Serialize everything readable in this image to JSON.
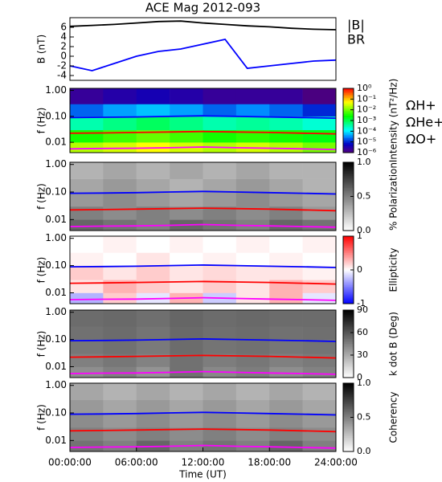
{
  "chart_data": [
    {
      "type": "line",
      "title": "ACE Mag 2012-093",
      "ylabel": "B (nT)",
      "x": [
        0,
        2,
        4,
        6,
        8,
        10,
        12,
        14,
        16,
        18,
        20,
        22,
        24
      ],
      "xlim": [
        0,
        24
      ],
      "ylim": [
        -5,
        8
      ],
      "yticks": [
        -4,
        -2,
        0,
        2,
        4,
        6
      ],
      "series": [
        {
          "name": "|B|",
          "color": "#000000",
          "values": [
            6.2,
            6.4,
            6.6,
            6.9,
            7.2,
            7.3,
            6.9,
            6.6,
            6.3,
            6.1,
            5.8,
            5.6,
            5.5
          ]
        },
        {
          "name": "BR",
          "color": "#0000ff",
          "values": [
            -2,
            -3,
            -1.5,
            0,
            1,
            1.5,
            2.5,
            3.5,
            -2.5,
            -2,
            -1.5,
            -1,
            -0.8
          ]
        }
      ]
    },
    {
      "type": "heatmap",
      "ylabel": "f (Hz)",
      "ylog": true,
      "xlim": [
        0,
        24
      ],
      "ylim": [
        0.004,
        1.2
      ],
      "yticks": [
        0.01,
        {
          "value": 0.1,
          "label": "0.10"
        },
        {
          "value": 1,
          "label": "1.00"
        }
      ],
      "x_bins": [
        0,
        3,
        6,
        9,
        12,
        15,
        18,
        21,
        24
      ],
      "f_bins": [
        0.004,
        0.01,
        0.03,
        0.1,
        0.3,
        1.2
      ],
      "values": [
        [
          0.02,
          0.03,
          0.05,
          0.03,
          0.02,
          0.03,
          0.02,
          0.01
        ],
        [
          0.003,
          0.005,
          0.008,
          0.005,
          0.003,
          0.004,
          0.003,
          0.002
        ],
        [
          0.0003,
          0.0005,
          0.0008,
          0.0005,
          0.0003,
          0.0004,
          0.0003,
          0.0002
        ],
        [
          2e-05,
          4e-05,
          6e-05,
          4e-05,
          2e-05,
          3e-05,
          2e-05,
          1e-05
        ],
        [
          2e-06,
          3e-06,
          4e-06,
          3e-06,
          2e-06,
          2e-06,
          2e-06,
          1e-06
        ]
      ],
      "colorbar": {
        "label": "Intensity (nT²/Hz)",
        "log": true,
        "colormap": "rainbow",
        "lim": [
          1e-06,
          1
        ],
        "ticks": [
          {
            "value": 1,
            "label": "10⁰"
          },
          {
            "value": 0.1,
            "label": "10⁻¹"
          },
          {
            "value": 0.01,
            "label": "10⁻²"
          },
          {
            "value": 0.001,
            "label": "10⁻³"
          },
          {
            "value": 0.0001,
            "label": "10⁻⁴"
          },
          {
            "value": 1e-05,
            "label": "10⁻⁵"
          },
          {
            "value": 1e-06,
            "label": "10⁻⁶"
          }
        ]
      },
      "x": [
        0,
        3,
        6,
        9,
        12,
        15,
        18,
        21,
        24
      ],
      "series": [
        {
          "name": "ΩH+",
          "color": "#0000ff",
          "values": [
            0.09,
            0.092,
            0.095,
            0.1,
            0.105,
            0.1,
            0.095,
            0.09,
            0.085
          ]
        },
        {
          "name": "ΩHe+",
          "color": "#ff0000",
          "values": [
            0.0225,
            0.023,
            0.024,
            0.025,
            0.026,
            0.025,
            0.024,
            0.0225,
            0.021
          ]
        },
        {
          "name": "ΩO+",
          "color": "#ff00ff",
          "values": [
            0.0056,
            0.0058,
            0.0059,
            0.0062,
            0.0066,
            0.0062,
            0.0059,
            0.0056,
            0.0053
          ]
        }
      ]
    },
    {
      "type": "heatmap",
      "ylabel": "f (Hz)",
      "ylog": true,
      "xlim": [
        0,
        24
      ],
      "ylim": [
        0.004,
        1.2
      ],
      "yticks": [
        0.01,
        {
          "value": 0.1,
          "label": "0.10"
        },
        {
          "value": 1,
          "label": "1.00"
        }
      ],
      "x_bins": [
        0,
        3,
        6,
        9,
        12,
        15,
        18,
        21,
        24
      ],
      "f_bins": [
        0.004,
        0.01,
        0.03,
        0.1,
        0.3,
        1.2
      ],
      "values": [
        [
          0.6,
          0.55,
          0.5,
          0.6,
          0.55,
          0.5,
          0.6,
          0.55
        ],
        [
          0.5,
          0.45,
          0.5,
          0.45,
          0.5,
          0.45,
          0.5,
          0.4
        ],
        [
          0.4,
          0.45,
          0.4,
          0.35,
          0.4,
          0.45,
          0.4,
          0.35
        ],
        [
          0.35,
          0.4,
          0.35,
          0.3,
          0.35,
          0.4,
          0.35,
          0.3
        ],
        [
          0.3,
          0.35,
          0.3,
          0.35,
          0.3,
          0.35,
          0.3,
          0.3
        ]
      ],
      "colorbar": {
        "label": "% Polarization",
        "colormap": "gray",
        "lim": [
          0,
          1
        ],
        "ticks": [
          {
            "value": 0,
            "label": "0.0"
          },
          0.5,
          {
            "value": 1,
            "label": "1.0"
          }
        ]
      },
      "x": [
        0,
        3,
        6,
        9,
        12,
        15,
        18,
        21,
        24
      ],
      "series": [
        {
          "color": "#0000ff",
          "values": [
            0.09,
            0.092,
            0.095,
            0.1,
            0.105,
            0.1,
            0.095,
            0.09,
            0.085
          ]
        },
        {
          "color": "#ff0000",
          "values": [
            0.0225,
            0.023,
            0.024,
            0.025,
            0.026,
            0.025,
            0.024,
            0.0225,
            0.021
          ]
        },
        {
          "color": "#ff00ff",
          "values": [
            0.0056,
            0.0058,
            0.0059,
            0.0062,
            0.0066,
            0.0062,
            0.0059,
            0.0056,
            0.0053
          ]
        }
      ]
    },
    {
      "type": "heatmap",
      "ylabel": "f (Hz)",
      "ylog": true,
      "xlim": [
        0,
        24
      ],
      "ylim": [
        0.004,
        1.2
      ],
      "yticks": [
        0.01,
        {
          "value": 0.1,
          "label": "0.10"
        },
        {
          "value": 1,
          "label": "1.00"
        }
      ],
      "x_bins": [
        0,
        3,
        6,
        9,
        12,
        15,
        18,
        21,
        24
      ],
      "f_bins": [
        0.004,
        0.01,
        0.03,
        0.1,
        0.3,
        1.2
      ],
      "values": [
        [
          -0.3,
          0.2,
          -0.1,
          0.3,
          -0.2,
          0.1,
          0.3,
          -0.1
        ],
        [
          0.1,
          0.3,
          0.2,
          0.1,
          0.2,
          0.1,
          0.3,
          0.2
        ],
        [
          0.2,
          0.1,
          0.2,
          0.1,
          0.15,
          0.1,
          0.1,
          0.05
        ],
        [
          0.05,
          0,
          0.1,
          0,
          0.05,
          0,
          0.05,
          0
        ],
        [
          0,
          0.05,
          0,
          0.05,
          0,
          0.05,
          0,
          0.05
        ]
      ],
      "colorbar": {
        "label": "Ellipticity",
        "colormap": "bwr",
        "lim": [
          -1,
          1
        ],
        "ticks": [
          -1,
          0,
          1
        ]
      },
      "x": [
        0,
        3,
        6,
        9,
        12,
        15,
        18,
        21,
        24
      ],
      "series": [
        {
          "color": "#0000ff",
          "values": [
            0.09,
            0.092,
            0.095,
            0.1,
            0.105,
            0.1,
            0.095,
            0.09,
            0.085
          ]
        },
        {
          "color": "#ff0000",
          "values": [
            0.0225,
            0.023,
            0.024,
            0.025,
            0.026,
            0.025,
            0.024,
            0.0225,
            0.021
          ]
        },
        {
          "color": "#ff00ff",
          "values": [
            0.0056,
            0.0058,
            0.0059,
            0.0062,
            0.0066,
            0.0062,
            0.0059,
            0.0056,
            0.0053
          ]
        }
      ]
    },
    {
      "type": "heatmap",
      "ylabel": "f (Hz)",
      "ylog": true,
      "xlim": [
        0,
        24
      ],
      "ylim": [
        0.004,
        1.2
      ],
      "yticks": [
        0.01,
        {
          "value": 0.1,
          "label": "0.10"
        },
        {
          "value": 1,
          "label": "1.00"
        }
      ],
      "x_bins": [
        0,
        3,
        6,
        9,
        12,
        15,
        18,
        21,
        24
      ],
      "f_bins": [
        0.004,
        0.01,
        0.03,
        0.1,
        0.3,
        1.2
      ],
      "values": [
        [
          40,
          45,
          38,
          50,
          42,
          46,
          40,
          44
        ],
        [
          45,
          48,
          44,
          50,
          46,
          48,
          45,
          47
        ],
        [
          48,
          50,
          47,
          52,
          49,
          50,
          48,
          49
        ],
        [
          50,
          52,
          49,
          53,
          51,
          52,
          50,
          51
        ],
        [
          52,
          53,
          51,
          54,
          52,
          53,
          52,
          52
        ]
      ],
      "colorbar": {
        "label": "k dot B (Deg)",
        "colormap": "gray",
        "lim": [
          0,
          90
        ],
        "ticks": [
          0,
          30,
          60,
          90
        ]
      },
      "x": [
        0,
        3,
        6,
        9,
        12,
        15,
        18,
        21,
        24
      ],
      "series": [
        {
          "color": "#0000ff",
          "values": [
            0.09,
            0.092,
            0.095,
            0.1,
            0.105,
            0.1,
            0.095,
            0.09,
            0.085
          ]
        },
        {
          "color": "#ff0000",
          "values": [
            0.0225,
            0.023,
            0.024,
            0.025,
            0.026,
            0.025,
            0.024,
            0.0225,
            0.021
          ]
        },
        {
          "color": "#ff00ff",
          "values": [
            0.0056,
            0.0058,
            0.0059,
            0.0062,
            0.0066,
            0.0062,
            0.0059,
            0.0056,
            0.0053
          ]
        }
      ]
    },
    {
      "type": "heatmap",
      "ylabel": "f (Hz)",
      "ylog": true,
      "xlim": [
        0,
        24
      ],
      "ylim": [
        0.004,
        1.2
      ],
      "yticks": [
        0.01,
        {
          "value": 0.1,
          "label": "0.10"
        },
        {
          "value": 1,
          "label": "1.00"
        }
      ],
      "x_bins": [
        0,
        3,
        6,
        9,
        12,
        15,
        18,
        21,
        24
      ],
      "f_bins": [
        0.004,
        0.01,
        0.03,
        0.1,
        0.3,
        1.2
      ],
      "values": [
        [
          0.55,
          0.5,
          0.6,
          0.5,
          0.55,
          0.5,
          0.6,
          0.5
        ],
        [
          0.5,
          0.45,
          0.5,
          0.45,
          0.5,
          0.45,
          0.5,
          0.45
        ],
        [
          0.45,
          0.4,
          0.45,
          0.4,
          0.45,
          0.4,
          0.45,
          0.4
        ],
        [
          0.4,
          0.35,
          0.4,
          0.35,
          0.4,
          0.35,
          0.4,
          0.35
        ],
        [
          0.35,
          0.3,
          0.35,
          0.3,
          0.35,
          0.3,
          0.35,
          0.3
        ]
      ],
      "colorbar": {
        "label": "Coherency",
        "colormap": "gray",
        "lim": [
          0,
          1
        ],
        "ticks": [
          {
            "value": 0,
            "label": "0.0"
          },
          0.5,
          {
            "value": 1,
            "label": "1.0"
          }
        ]
      },
      "x": [
        0,
        3,
        6,
        9,
        12,
        15,
        18,
        21,
        24
      ],
      "series": [
        {
          "color": "#0000ff",
          "values": [
            0.09,
            0.092,
            0.095,
            0.1,
            0.105,
            0.1,
            0.095,
            0.09,
            0.085
          ]
        },
        {
          "color": "#ff0000",
          "values": [
            0.0225,
            0.023,
            0.024,
            0.025,
            0.026,
            0.025,
            0.024,
            0.0225,
            0.021
          ]
        },
        {
          "color": "#ff00ff",
          "values": [
            0.0056,
            0.0058,
            0.0059,
            0.0062,
            0.0066,
            0.0062,
            0.0059,
            0.0056,
            0.0053
          ]
        }
      ],
      "xlabel": "Time (UT)",
      "xticks": [
        {
          "value": 0,
          "label": "00:00:00"
        },
        {
          "value": 6,
          "label": "06:00:00"
        },
        {
          "value": 12,
          "label": "12:00:00"
        },
        {
          "value": 18,
          "label": "18:00:00"
        },
        {
          "value": 24,
          "label": "24:00:00"
        }
      ]
    }
  ]
}
